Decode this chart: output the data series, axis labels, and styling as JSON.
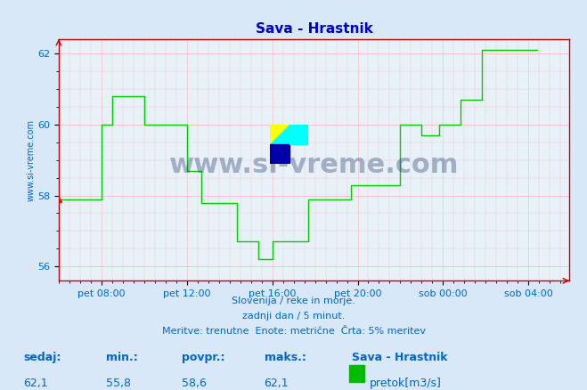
{
  "title": "Sava - Hrastnik",
  "title_color": "#0000cc",
  "bg_color": "#d8e8f8",
  "plot_bg_color": "#e8f0f8",
  "grid_color": "#ff9999",
  "line_color": "#00cc00",
  "axis_color": "#cc0000",
  "tick_color": "#0066cc",
  "label_color": "#0066cc",
  "ylabel_text": "www.si-vreme.com",
  "ylabel_color": "#0066cc",
  "xlim": [
    0,
    287
  ],
  "ylim": [
    55.6,
    62.4
  ],
  "yticks": [
    56,
    58,
    60,
    62
  ],
  "xtick_positions": [
    24,
    72,
    120,
    168,
    216,
    264
  ],
  "xtick_labels": [
    "pet 08:00",
    "pet 12:00",
    "pet 16:00",
    "pet 20:00",
    "sob 00:00",
    "sob 04:00"
  ],
  "footer_line1": "Slovenija / reke in morje.",
  "footer_line2": "zadnji dan / 5 minut.",
  "footer_line3": "Meritve: trenutne  Enote: metrične  Črta: 5% meritev",
  "footer_color": "#0066cc",
  "stats_labels": [
    "sedaj:",
    "min.:",
    "povpr.:",
    "maks.:"
  ],
  "stats_values": [
    "62,1",
    "55,8",
    "58,6",
    "62,1"
  ],
  "legend_label": "Sava - Hrastnik",
  "legend_sublabel": "pretok[m3/s]",
  "legend_color": "#00bb00",
  "watermark_text": "www.si-vreme.com",
  "watermark_color": "#1a3a6a",
  "watermark_alpha": 0.35,
  "data_y": [
    57.9,
    57.9,
    57.9,
    57.9,
    57.9,
    57.9,
    57.9,
    57.9,
    57.9,
    57.9,
    57.9,
    57.9,
    57.9,
    57.9,
    57.9,
    57.9,
    57.9,
    57.9,
    57.9,
    57.9,
    57.9,
    57.9,
    57.9,
    57.9,
    60.0,
    60.0,
    60.0,
    60.0,
    60.0,
    60.0,
    60.8,
    60.8,
    60.8,
    60.8,
    60.8,
    60.8,
    60.8,
    60.8,
    60.8,
    60.8,
    60.8,
    60.8,
    60.8,
    60.8,
    60.8,
    60.8,
    60.8,
    60.8,
    60.0,
    60.0,
    60.0,
    60.0,
    60.0,
    60.0,
    60.0,
    60.0,
    60.0,
    60.0,
    60.0,
    60.0,
    60.0,
    60.0,
    60.0,
    60.0,
    60.0,
    60.0,
    60.0,
    60.0,
    60.0,
    60.0,
    60.0,
    60.0,
    58.7,
    58.7,
    58.7,
    58.7,
    58.7,
    58.7,
    58.7,
    58.7,
    57.8,
    57.8,
    57.8,
    57.8,
    57.8,
    57.8,
    57.8,
    57.8,
    57.8,
    57.8,
    57.8,
    57.8,
    57.8,
    57.8,
    57.8,
    57.8,
    57.8,
    57.8,
    57.8,
    57.8,
    56.7,
    56.7,
    56.7,
    56.7,
    56.7,
    56.7,
    56.7,
    56.7,
    56.7,
    56.7,
    56.7,
    56.7,
    56.2,
    56.2,
    56.2,
    56.2,
    56.2,
    56.2,
    56.2,
    56.2,
    56.7,
    56.7,
    56.7,
    56.7,
    56.7,
    56.7,
    56.7,
    56.7,
    56.7,
    56.7,
    56.7,
    56.7,
    56.7,
    56.7,
    56.7,
    56.7,
    56.7,
    56.7,
    56.7,
    56.7,
    57.9,
    57.9,
    57.9,
    57.9,
    57.9,
    57.9,
    57.9,
    57.9,
    57.9,
    57.9,
    57.9,
    57.9,
    57.9,
    57.9,
    57.9,
    57.9,
    57.9,
    57.9,
    57.9,
    57.9,
    57.9,
    57.9,
    57.9,
    57.9,
    58.3,
    58.3,
    58.3,
    58.3,
    58.3,
    58.3,
    58.3,
    58.3,
    58.3,
    58.3,
    58.3,
    58.3,
    58.3,
    58.3,
    58.3,
    58.3,
    58.3,
    58.3,
    58.3,
    58.3,
    58.3,
    58.3,
    58.3,
    58.3,
    58.3,
    58.3,
    58.3,
    58.3,
    60.0,
    60.0,
    60.0,
    60.0,
    60.0,
    60.0,
    60.0,
    60.0,
    60.0,
    60.0,
    60.0,
    60.0,
    59.7,
    59.7,
    59.7,
    59.7,
    59.7,
    59.7,
    59.7,
    59.7,
    59.7,
    59.7,
    60.0,
    60.0,
    60.0,
    60.0,
    60.0,
    60.0,
    60.0,
    60.0,
    60.0,
    60.0,
    60.0,
    60.0,
    60.7,
    60.7,
    60.7,
    60.7,
    60.7,
    60.7,
    60.7,
    60.7,
    60.7,
    60.7,
    60.7,
    60.7,
    62.1,
    62.1,
    62.1,
    62.1,
    62.1,
    62.1,
    62.1,
    62.1,
    62.1,
    62.1,
    62.1,
    62.1,
    62.1,
    62.1,
    62.1,
    62.1,
    62.1,
    62.1,
    62.1,
    62.1,
    62.1,
    62.1,
    62.1,
    62.1,
    62.1,
    62.1,
    62.1,
    62.1,
    62.1,
    62.1,
    62.1,
    62.1
  ]
}
